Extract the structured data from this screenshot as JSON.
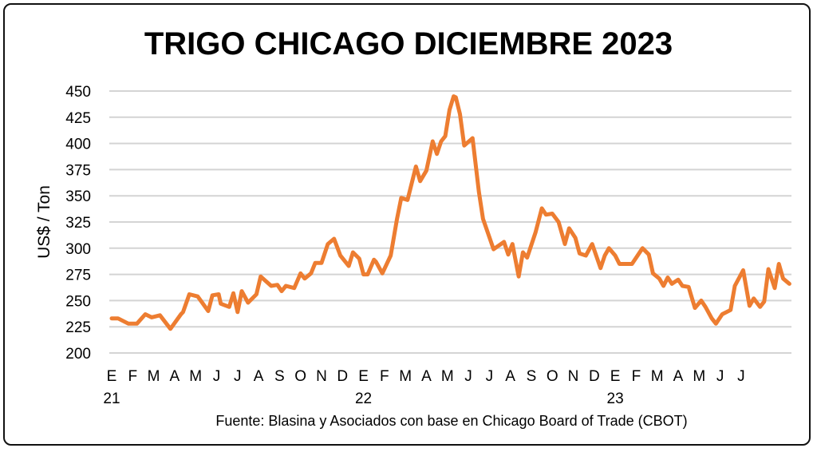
{
  "chart_data": {
    "type": "line",
    "title": "TRIGO CHICAGO DICIEMBRE 2023",
    "ylabel": "US$ / Ton",
    "xlabel": "",
    "source": "Fuente: Blasina y Asociados con base en Chicago Board of Trade (CBOT)",
    "ylim": [
      200,
      450
    ],
    "yticks": [
      200,
      225,
      250,
      275,
      300,
      325,
      350,
      375,
      400,
      425,
      450
    ],
    "grid": true,
    "x_unit": "months since January 2021",
    "xlim": [
      0,
      32.4
    ],
    "month_labels": [
      "E",
      "F",
      "M",
      "A",
      "M",
      "J",
      "J",
      "A",
      "S",
      "O",
      "N",
      "D",
      "E",
      "F",
      "M",
      "A",
      "M",
      "J",
      "J",
      "A",
      "S",
      "O",
      "N",
      "D",
      "E",
      "F",
      "M",
      "A",
      "M",
      "J",
      "J"
    ],
    "year_labels": [
      {
        "month": 0,
        "label": "21"
      },
      {
        "month": 12,
        "label": "22"
      },
      {
        "month": 24,
        "label": "23"
      }
    ],
    "line_color": "#ED7D31",
    "series": [
      {
        "name": "Trigo Chicago Dic 2023",
        "x": [
          0.0,
          0.3,
          0.8,
          1.2,
          1.6,
          1.9,
          2.3,
          2.8,
          3.3,
          3.4,
          3.7,
          4.1,
          4.6,
          4.8,
          5.1,
          5.2,
          5.6,
          5.8,
          6.0,
          6.2,
          6.5,
          6.9,
          7.1,
          7.6,
          7.9,
          8.1,
          8.3,
          8.7,
          9.0,
          9.2,
          9.5,
          9.7,
          10.0,
          10.3,
          10.6,
          10.9,
          11.3,
          11.5,
          11.8,
          12.0,
          12.2,
          12.5,
          12.6,
          12.9,
          13.3,
          13.6,
          13.8,
          14.1,
          14.5,
          14.7,
          15.0,
          15.3,
          15.5,
          15.7,
          15.9,
          16.1,
          16.3,
          16.4,
          16.6,
          16.8,
          17.2,
          17.5,
          17.7,
          18.2,
          18.7,
          18.9,
          19.1,
          19.4,
          19.6,
          19.8,
          20.2,
          20.5,
          20.7,
          21.0,
          21.3,
          21.6,
          21.8,
          22.1,
          22.3,
          22.6,
          22.9,
          23.3,
          23.5,
          23.7,
          24.0,
          24.2,
          24.8,
          25.3,
          25.6,
          25.8,
          26.1,
          26.3,
          26.5,
          26.7,
          27.0,
          27.2,
          27.5,
          27.6,
          27.8,
          28.1,
          28.3,
          28.6,
          28.8,
          29.1,
          29.5,
          29.7,
          30.1,
          30.4,
          30.6,
          30.9,
          31.1,
          31.3,
          31.6,
          31.8,
          32.0,
          32.3
        ],
        "values": [
          233,
          233,
          228,
          228,
          237,
          234,
          236,
          223,
          237,
          239,
          256,
          254,
          240,
          255,
          256,
          247,
          244,
          257,
          239,
          259,
          248,
          256,
          273,
          264,
          265,
          259,
          264,
          262,
          276,
          271,
          276,
          286,
          286,
          304,
          309,
          293,
          283,
          296,
          290,
          275,
          275,
          289,
          287,
          276,
          293,
          328,
          348,
          346,
          378,
          364,
          374,
          402,
          390,
          402,
          407,
          432,
          445,
          444,
          428,
          398,
          405,
          354,
          328,
          299,
          306,
          294,
          304,
          273,
          296,
          291,
          315,
          338,
          332,
          333,
          325,
          304,
          319,
          310,
          295,
          293,
          304,
          281,
          293,
          300,
          293,
          285,
          285,
          300,
          294,
          276,
          271,
          264,
          272,
          266,
          270,
          264,
          263,
          256,
          243,
          250,
          244,
          233,
          228,
          237,
          241,
          264,
          279,
          245,
          252,
          244,
          249,
          280,
          262,
          285,
          271,
          266
        ]
      }
    ]
  }
}
